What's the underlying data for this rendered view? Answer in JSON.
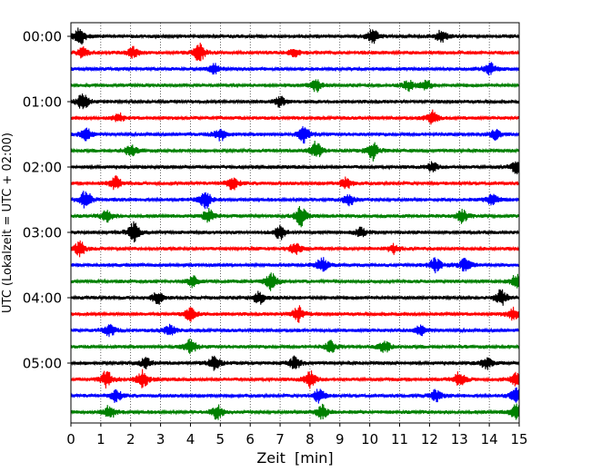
{
  "chart_data": {
    "type": "line",
    "title": "",
    "xlabel": "Zeit  [min]",
    "ylabel": "UTC (Lokalzeit = UTC + 02:00)",
    "xlim": [
      0,
      15
    ],
    "x_ticks": [
      0,
      1,
      2,
      3,
      4,
      5,
      6,
      7,
      8,
      9,
      10,
      11,
      12,
      13,
      14,
      15
    ],
    "grid_x": true,
    "y_tick_labels": [
      "00:00",
      "01:00",
      "02:00",
      "03:00",
      "04:00",
      "05:00"
    ],
    "traces_per_hour": 4,
    "trace_colors": [
      "#000000",
      "#ff0000",
      "#0000ff",
      "#008000"
    ],
    "traces": [
      {
        "start": "00:00",
        "color": "#000000",
        "bursts": [
          [
            0.3,
            1.2
          ],
          [
            10.1,
            1.0
          ],
          [
            12.4,
            0.9
          ]
        ]
      },
      {
        "start": "00:15",
        "color": "#ff0000",
        "bursts": [
          [
            0.4,
            0.7
          ],
          [
            2.1,
            0.8
          ],
          [
            4.3,
            1.2
          ],
          [
            7.5,
            0.6
          ]
        ]
      },
      {
        "start": "00:30",
        "color": "#0000ff",
        "bursts": [
          [
            4.8,
            0.7
          ],
          [
            14.0,
            0.9
          ]
        ]
      },
      {
        "start": "00:45",
        "color": "#008000",
        "bursts": [
          [
            8.2,
            0.8
          ],
          [
            11.3,
            0.7
          ],
          [
            11.9,
            0.6
          ]
        ]
      },
      {
        "start": "01:00",
        "color": "#000000",
        "bursts": [
          [
            0.4,
            1.3
          ],
          [
            7.0,
            0.7
          ]
        ]
      },
      {
        "start": "01:15",
        "color": "#ff0000",
        "bursts": [
          [
            1.6,
            0.6
          ],
          [
            12.1,
            1.0
          ]
        ]
      },
      {
        "start": "01:30",
        "color": "#0000ff",
        "bursts": [
          [
            0.5,
            0.9
          ],
          [
            5.0,
            0.9
          ],
          [
            7.8,
            1.1
          ],
          [
            14.2,
            0.7
          ]
        ]
      },
      {
        "start": "01:45",
        "color": "#008000",
        "bursts": [
          [
            2.0,
            0.8
          ],
          [
            8.2,
            1.2
          ],
          [
            10.1,
            1.3
          ]
        ]
      },
      {
        "start": "02:00",
        "color": "#000000",
        "bursts": [
          [
            12.1,
            0.6
          ],
          [
            14.9,
            0.8
          ]
        ]
      },
      {
        "start": "02:15",
        "color": "#ff0000",
        "bursts": [
          [
            1.5,
            0.9
          ],
          [
            5.4,
            1.0
          ],
          [
            9.2,
            0.8
          ]
        ]
      },
      {
        "start": "02:30",
        "color": "#0000ff",
        "bursts": [
          [
            0.5,
            1.3
          ],
          [
            4.5,
            1.3
          ],
          [
            9.3,
            0.8
          ],
          [
            14.1,
            0.8
          ]
        ]
      },
      {
        "start": "02:45",
        "color": "#008000",
        "bursts": [
          [
            1.2,
            0.8
          ],
          [
            4.6,
            0.9
          ],
          [
            7.7,
            1.4
          ],
          [
            13.1,
            0.9
          ]
        ]
      },
      {
        "start": "03:00",
        "color": "#000000",
        "bursts": [
          [
            2.1,
            1.4
          ],
          [
            7.0,
            1.0
          ],
          [
            9.7,
            0.6
          ]
        ]
      },
      {
        "start": "03:15",
        "color": "#ff0000",
        "bursts": [
          [
            0.3,
            1.0
          ],
          [
            7.5,
            0.8
          ],
          [
            10.8,
            0.6
          ]
        ]
      },
      {
        "start": "03:30",
        "color": "#0000ff",
        "bursts": [
          [
            8.4,
            1.0
          ],
          [
            12.2,
            1.0
          ],
          [
            13.2,
            0.9
          ]
        ]
      },
      {
        "start": "03:45",
        "color": "#008000",
        "bursts": [
          [
            4.1,
            0.8
          ],
          [
            6.7,
            1.2
          ],
          [
            14.9,
            0.9
          ]
        ]
      },
      {
        "start": "04:00",
        "color": "#000000",
        "bursts": [
          [
            2.9,
            0.8
          ],
          [
            6.3,
            0.9
          ],
          [
            14.4,
            1.1
          ]
        ]
      },
      {
        "start": "04:15",
        "color": "#ff0000",
        "bursts": [
          [
            4.0,
            0.9
          ],
          [
            7.6,
            1.1
          ],
          [
            14.8,
            0.8
          ]
        ]
      },
      {
        "start": "04:30",
        "color": "#0000ff",
        "bursts": [
          [
            1.3,
            0.8
          ],
          [
            3.3,
            0.8
          ],
          [
            11.7,
            0.7
          ]
        ]
      },
      {
        "start": "04:45",
        "color": "#008000",
        "bursts": [
          [
            4.0,
            1.0
          ],
          [
            8.7,
            0.8
          ],
          [
            10.5,
            0.9
          ]
        ]
      },
      {
        "start": "05:00",
        "color": "#000000",
        "bursts": [
          [
            2.5,
            0.7
          ],
          [
            4.8,
            1.0
          ],
          [
            7.5,
            0.9
          ],
          [
            13.9,
            0.8
          ]
        ]
      },
      {
        "start": "05:15",
        "color": "#ff0000",
        "bursts": [
          [
            1.2,
            1.2
          ],
          [
            2.4,
            1.2
          ],
          [
            8.0,
            1.1
          ],
          [
            13.0,
            1.0
          ],
          [
            14.9,
            0.9
          ]
        ]
      },
      {
        "start": "05:30",
        "color": "#0000ff",
        "bursts": [
          [
            1.5,
            0.9
          ],
          [
            8.3,
            0.9
          ],
          [
            12.2,
            0.8
          ],
          [
            14.9,
            1.0
          ]
        ]
      },
      {
        "start": "05:45",
        "color": "#008000",
        "bursts": [
          [
            1.3,
            1.0
          ],
          [
            4.9,
            1.0
          ],
          [
            8.4,
            1.0
          ],
          [
            14.9,
            1.0
          ]
        ]
      }
    ]
  }
}
